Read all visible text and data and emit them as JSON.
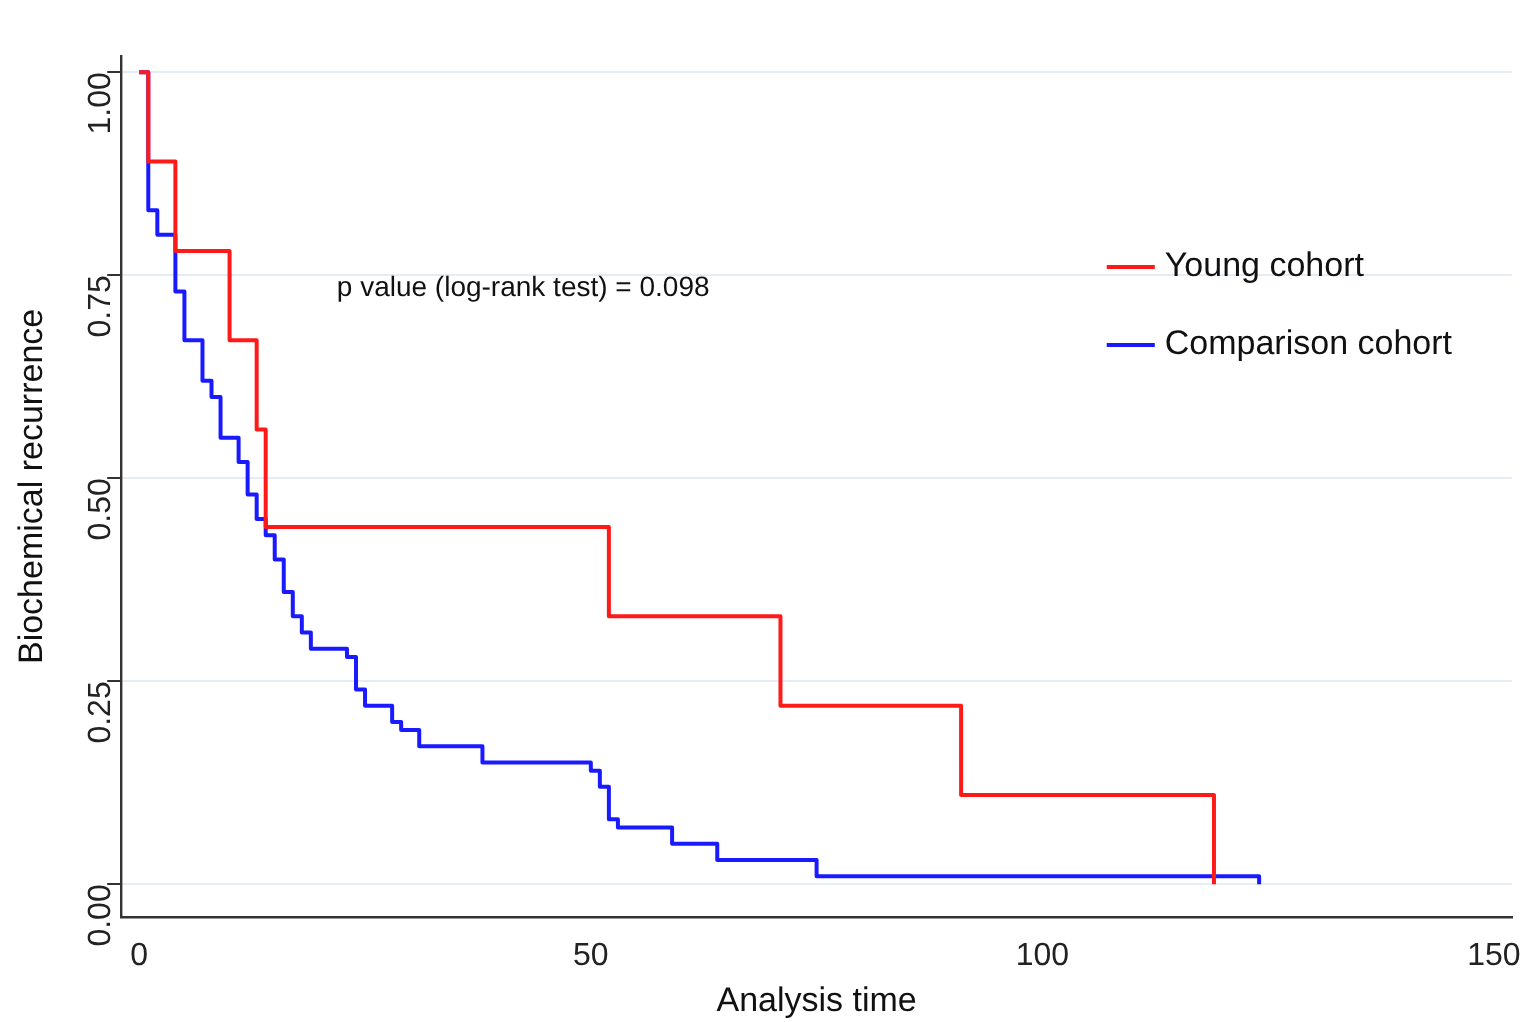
{
  "chart_data": {
    "type": "step",
    "xlabel": "Analysis time",
    "ylabel": "Biochemical recurrence",
    "annotations": [
      "p value (log-rank test) = 0.098"
    ],
    "xlim": [
      -2,
      152
    ],
    "xticks": [
      0,
      50,
      100,
      150
    ],
    "ylim": [
      -0.04,
      1.02
    ],
    "yticks": [
      {
        "value": 0,
        "label": "0.00"
      },
      {
        "value": 0.25,
        "label": "0.25"
      },
      {
        "value": 0.5,
        "label": "0.50"
      },
      {
        "value": 0.75,
        "label": "0.75"
      },
      {
        "value": 1,
        "label": "1.00"
      }
    ],
    "grid": "y",
    "legend": "top right",
    "series": [
      {
        "name": "Young cohort",
        "color": "#ff1a1a",
        "x": [
          0,
          1,
          4,
          10,
          13,
          14,
          52,
          71,
          91,
          119
        ],
        "values": [
          1,
          0.89,
          0.78,
          0.67,
          0.56,
          0.44,
          0.33,
          0.22,
          0.11,
          0
        ]
      },
      {
        "name": "Comparison cohort",
        "color": "#1a1aff",
        "x": [
          0,
          1,
          2,
          4,
          5,
          7,
          8,
          9,
          11,
          12,
          13,
          14,
          15,
          16,
          17,
          18,
          19,
          23,
          24,
          25,
          28,
          29,
          31,
          38,
          50,
          51,
          52,
          53,
          59,
          64,
          75,
          124
        ],
        "values": [
          1,
          0.83,
          0.8,
          0.73,
          0.67,
          0.62,
          0.6,
          0.55,
          0.52,
          0.48,
          0.45,
          0.43,
          0.4,
          0.36,
          0.33,
          0.31,
          0.29,
          0.28,
          0.24,
          0.22,
          0.2,
          0.19,
          0.17,
          0.15,
          0.14,
          0.12,
          0.08,
          0.07,
          0.05,
          0.03,
          0.01,
          0
        ]
      }
    ]
  }
}
